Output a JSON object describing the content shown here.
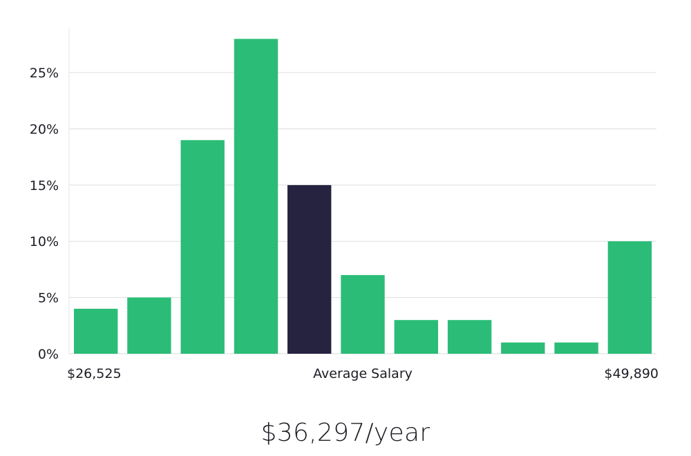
{
  "chart_data": {
    "type": "bar",
    "values": [
      4,
      5,
      19,
      28,
      15,
      7,
      3,
      3,
      1,
      1,
      10
    ],
    "highlight_index": 4,
    "ylim": [
      0,
      29
    ],
    "y_ticks": [
      0,
      5,
      10,
      15,
      20,
      25
    ],
    "y_tick_labels": [
      "0%",
      "5%",
      "10%",
      "15%",
      "20%",
      "25%"
    ],
    "x_label_left": "$26,525",
    "x_label_center": "Average Salary",
    "x_label_right": "$49,890",
    "grid": true,
    "colors": {
      "bar": "#2bbd77",
      "highlight": "#262341",
      "grid": "#dddddd",
      "axis": "#e6e6e6"
    }
  },
  "average_salary_text": "$36,297/year"
}
